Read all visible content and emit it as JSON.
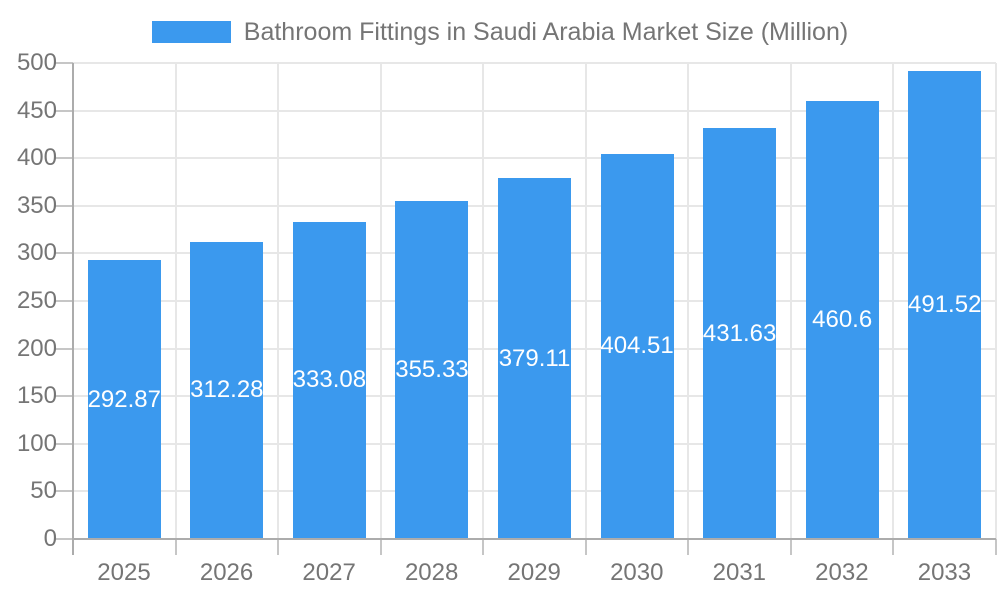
{
  "colors": {
    "bar": "#3B99EE",
    "grid": "#E7E7E7",
    "axis": "#ACACAC",
    "tick": "#C6C6C6",
    "text": "#757575",
    "value_label": "#FFFFFF",
    "background": "#FFFFFF"
  },
  "legend": {
    "position": "top",
    "series_label": "Bathroom Fittings in Saudi Arabia Market Size (Million)"
  },
  "chart_data": {
    "type": "bar",
    "title": "Bathroom Fittings in Saudi Arabia Market Size (Million)",
    "series_name": "Bathroom Fittings in Saudi Arabia Market Size (Million)",
    "categories": [
      "2025",
      "2026",
      "2027",
      "2028",
      "2029",
      "2030",
      "2031",
      "2032",
      "2033"
    ],
    "values": [
      292.87,
      312.28,
      333.08,
      355.33,
      379.11,
      404.51,
      431.63,
      460.6,
      491.52
    ],
    "value_labels_visible": true,
    "xlabel": "",
    "ylabel": "",
    "ylim": [
      0,
      500
    ],
    "yticks": [
      0,
      50,
      100,
      150,
      200,
      250,
      300,
      350,
      400,
      450,
      500
    ],
    "grid": true,
    "legend_position": "top"
  }
}
